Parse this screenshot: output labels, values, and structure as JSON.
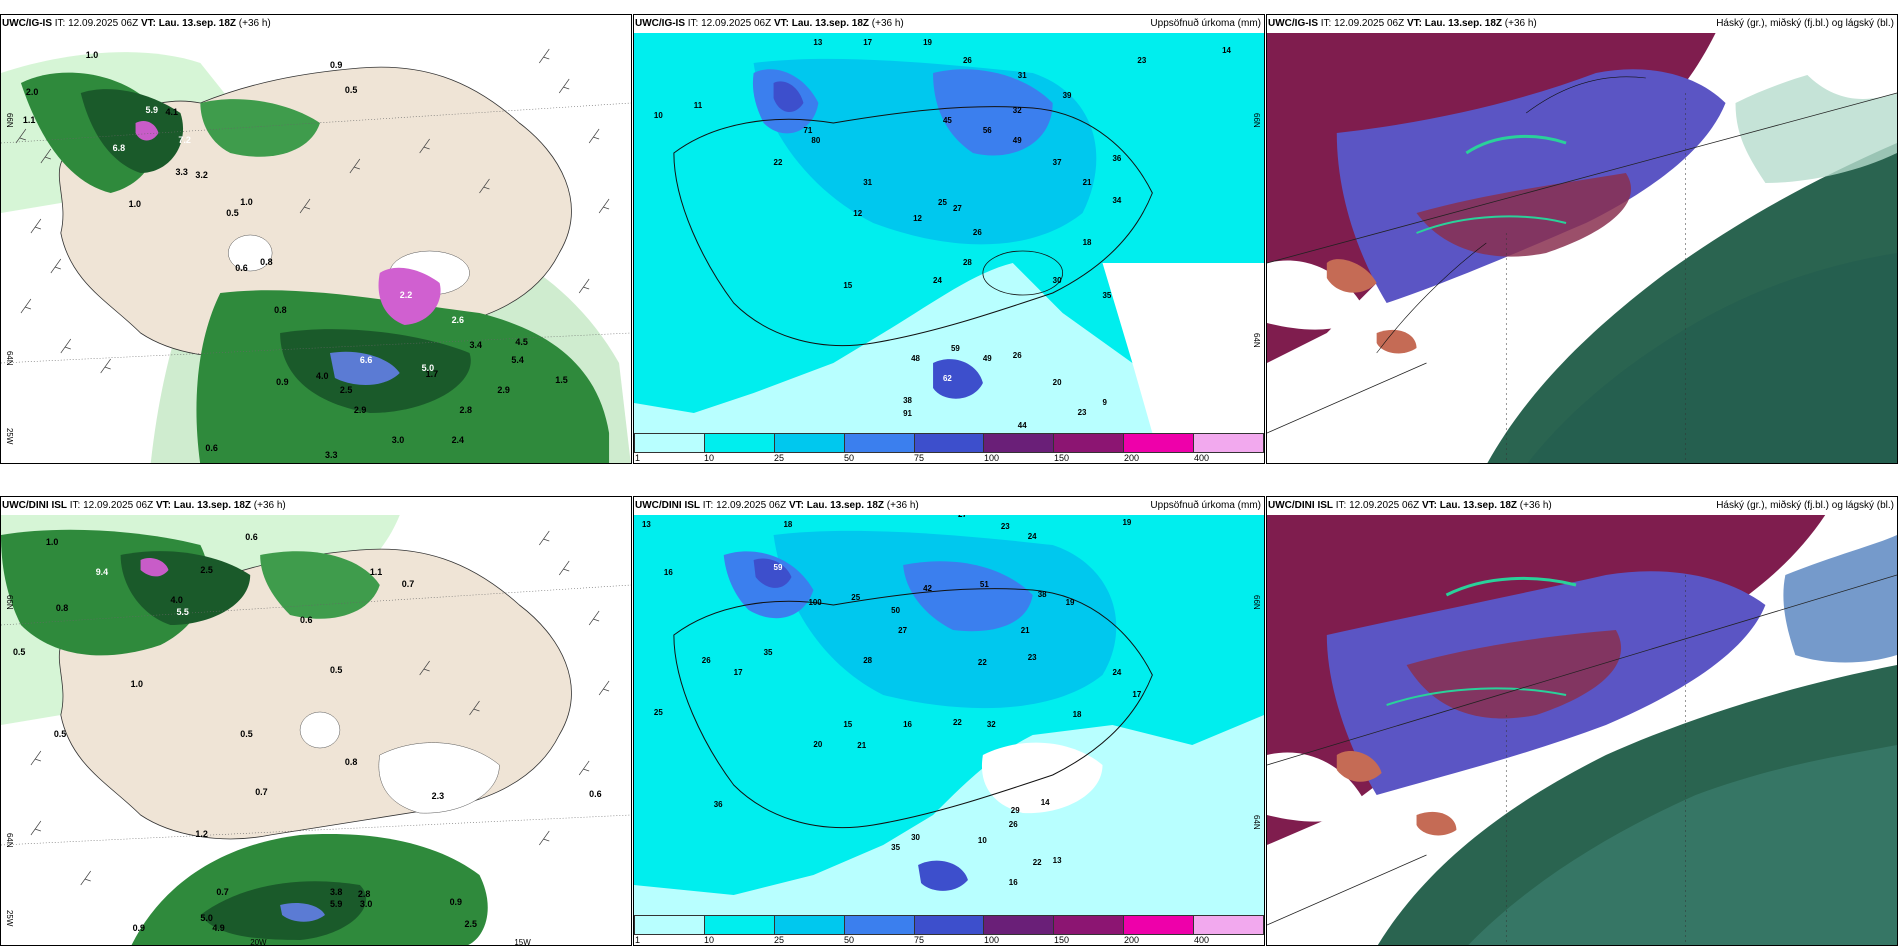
{
  "panels": {
    "p1": {
      "model": "UWC/IG-IS",
      "it_label": "IT:",
      "it_value": "12.09.2025 06Z",
      "vt_label": "VT:",
      "vt_value": "Lau. 13.sep. 18Z",
      "lead": "(+36 h)",
      "right_title": "",
      "lat_labels": [
        "66N",
        "64N"
      ],
      "lon_labels": [
        "25W"
      ],
      "values": [
        "2.0",
        "1.0",
        "0.9",
        "0.5",
        "1.1",
        "5.9",
        "4.1",
        "7.2",
        "6.8",
        "3.3",
        "3.2",
        "1.0",
        "0.5",
        "1.0",
        "0.6",
        "0.8",
        "0.8",
        "2.2",
        "3.4",
        "1.5",
        "2.6",
        "4.0",
        "2.5",
        "5.4",
        "2.9",
        "1.7",
        "3.0",
        "2.4",
        "3.3",
        "2.8",
        "4.5",
        "2.9",
        "0.6",
        "0.9",
        "6.6",
        "5.0"
      ]
    },
    "p2": {
      "model": "UWC/IG-IS",
      "it_label": "IT:",
      "it_value": "12.09.2025 06Z",
      "vt_label": "VT:",
      "vt_value": "Lau. 13.sep. 18Z",
      "lead": "(+36 h)",
      "right_title": "Uppsöfnuð úrkoma (mm)",
      "lat_labels": [
        "66N",
        "64N"
      ],
      "values": [
        "13",
        "17",
        "19",
        "26",
        "31",
        "23",
        "14",
        "10",
        "11",
        "71",
        "80",
        "32",
        "39",
        "45",
        "56",
        "49",
        "22",
        "31",
        "37",
        "36",
        "25",
        "27",
        "21",
        "12",
        "12",
        "15",
        "30",
        "26",
        "28",
        "24",
        "18",
        "34",
        "35",
        "48",
        "49",
        "26",
        "62",
        "38",
        "91",
        "20",
        "23",
        "9",
        "44",
        "59"
      ],
      "colorbar": {
        "colors": [
          "#b8ffff",
          "#00eeee",
          "#00c8ee",
          "#3b7fee",
          "#3d4fcc",
          "#6a1f78",
          "#8c1572",
          "#ee00aa",
          "#f2a9ee"
        ],
        "ticks": [
          "1",
          "10",
          "25",
          "50",
          "75",
          "100",
          "150",
          "200",
          "400"
        ]
      }
    },
    "p3": {
      "model": "UWC/IG-IS",
      "it_label": "IT:",
      "it_value": "12.09.2025 06Z",
      "vt_label": "VT:",
      "vt_value": "Lau. 13.sep. 18Z",
      "lead": "(+36 h)",
      "right_title": "Háský (gr.), miðský (fj.bl.) og lágský (bl.)"
    },
    "p4": {
      "model": "UWC/DINI ISL",
      "it_label": "IT:",
      "it_value": "12.09.2025 06Z",
      "vt_label": "VT:",
      "vt_value": "Lau. 13.sep. 18Z",
      "lead": "(+36 h)",
      "right_title": "",
      "lat_labels": [
        "66N",
        "64N"
      ],
      "lon_labels": [
        "25W",
        "20W",
        "15W"
      ],
      "values": [
        "1.0",
        "0.6",
        "2.5",
        "1.1",
        "9.4",
        "4.0",
        "5.5",
        "0.5",
        "0.6",
        "0.7",
        "0.8",
        "1.0",
        "0.5",
        "0.5",
        "0.8",
        "0.7",
        "0.5",
        "3.8",
        "5.9",
        "3.0",
        "2.8",
        "2.5",
        "0.9",
        "0.7",
        "5.0",
        "4.9",
        "0.6",
        "2.3",
        "0.9",
        "1.2"
      ]
    },
    "p5": {
      "model": "UWC/DINI ISL",
      "it_label": "IT:",
      "it_value": "12.09.2025 06Z",
      "vt_label": "VT:",
      "vt_value": "Lau. 13.sep. 18Z",
      "lead": "(+36 h)",
      "right_title": "Uppsöfnuð úrkoma (mm)",
      "lat_labels": [
        "66N",
        "64N"
      ],
      "values": [
        "13",
        "18",
        "27",
        "23",
        "24",
        "19",
        "16",
        "59",
        "100",
        "25",
        "50",
        "42",
        "51",
        "38",
        "19",
        "27",
        "21",
        "22",
        "23",
        "28",
        "35",
        "26",
        "25",
        "17",
        "16",
        "22",
        "32",
        "18",
        "15",
        "20",
        "24",
        "17",
        "21",
        "36",
        "30",
        "10",
        "35",
        "22",
        "13",
        "16",
        "14",
        "29",
        "26"
      ],
      "colorbar": {
        "colors": [
          "#b8ffff",
          "#00eeee",
          "#00c8ee",
          "#3b7fee",
          "#3d4fcc",
          "#6a1f78",
          "#8c1572",
          "#ee00aa",
          "#f2a9ee"
        ],
        "ticks": [
          "1",
          "10",
          "25",
          "50",
          "75",
          "100",
          "150",
          "200",
          "400"
        ]
      }
    },
    "p6": {
      "model": "UWC/DINI ISL",
      "it_label": "IT:",
      "it_value": "12.09.2025 06Z",
      "vt_label": "VT:",
      "vt_value": "Lau. 13.sep. 18Z",
      "lead": "(+36 h)",
      "right_title": "Háský (gr.), miðský (fj.bl.) og lágský (bl.)"
    }
  }
}
